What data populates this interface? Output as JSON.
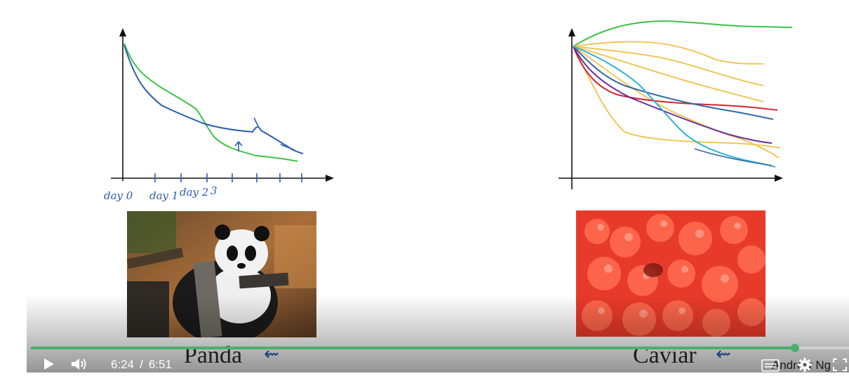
{
  "left_chart": {
    "x_tick_labels": [
      "day 0",
      "day 1",
      "day 2",
      "3"
    ]
  },
  "captions": {
    "panda": "Panda",
    "caviar": "Caviar",
    "panda_mark": "⇜",
    "caviar_mark": "⇜"
  },
  "player": {
    "current_time": "6:24",
    "separator": "/",
    "duration": "6:51",
    "progress": 0.934,
    "watermark": "Andrew Ng",
    "accent_color": "#4caf6d"
  },
  "icons": [
    "play-icon",
    "volume-icon",
    "captions-icon",
    "settings-icon",
    "fullscreen-icon"
  ]
}
